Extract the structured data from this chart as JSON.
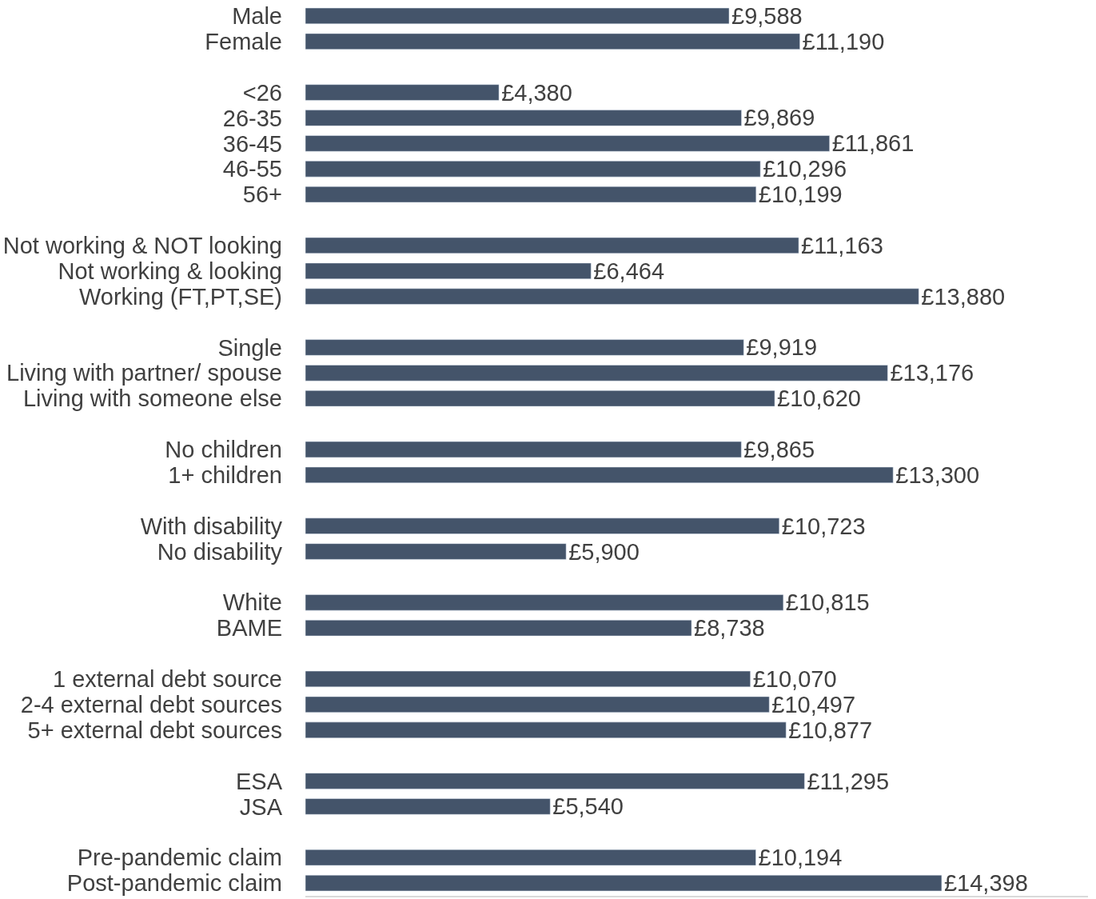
{
  "chart_data": {
    "type": "bar",
    "orientation": "horizontal",
    "categories": [
      "Male",
      "Female",
      null,
      "<26",
      "26-35",
      "36-45",
      "46-55",
      "56+",
      null,
      "Not working & NOT looking",
      "Not working & looking",
      "Working (FT,PT,SE)",
      null,
      "Single",
      "Living with partner/ spouse",
      "Living with someone else",
      null,
      "No children",
      "1+ children",
      null,
      "With disability",
      "No disability",
      null,
      "White",
      "BAME",
      null,
      "1 external debt source",
      "2-4 external debt sources",
      "5+ external debt sources",
      null,
      "ESA",
      "JSA",
      null,
      "Pre-pandemic claim",
      "Post-pandemic claim"
    ],
    "values": [
      9588,
      11190,
      null,
      4380,
      9869,
      11861,
      10296,
      10199,
      null,
      11163,
      6464,
      13880,
      null,
      9919,
      13176,
      10620,
      null,
      9865,
      13300,
      null,
      10723,
      5900,
      null,
      10815,
      8738,
      null,
      10070,
      10497,
      10877,
      null,
      11295,
      5540,
      null,
      10194,
      14398
    ],
    "value_labels": [
      "£9,588",
      "£11,190",
      null,
      "£4,380",
      "£9,869",
      "£11,861",
      "£10,296",
      "£10,199",
      null,
      "£11,163",
      "£6,464",
      "£13,880",
      null,
      "£9,919",
      "£13,176",
      "£10,620",
      null,
      "£9,865",
      "£13,300",
      null,
      "£10,723",
      "£5,900",
      null,
      "£10,815",
      "£8,738",
      null,
      "£10,070",
      "£10,497",
      "£10,877",
      null,
      "£11,295",
      "£5,540",
      null,
      "£10,194",
      "£14,398"
    ],
    "color": "#44546a"
  }
}
